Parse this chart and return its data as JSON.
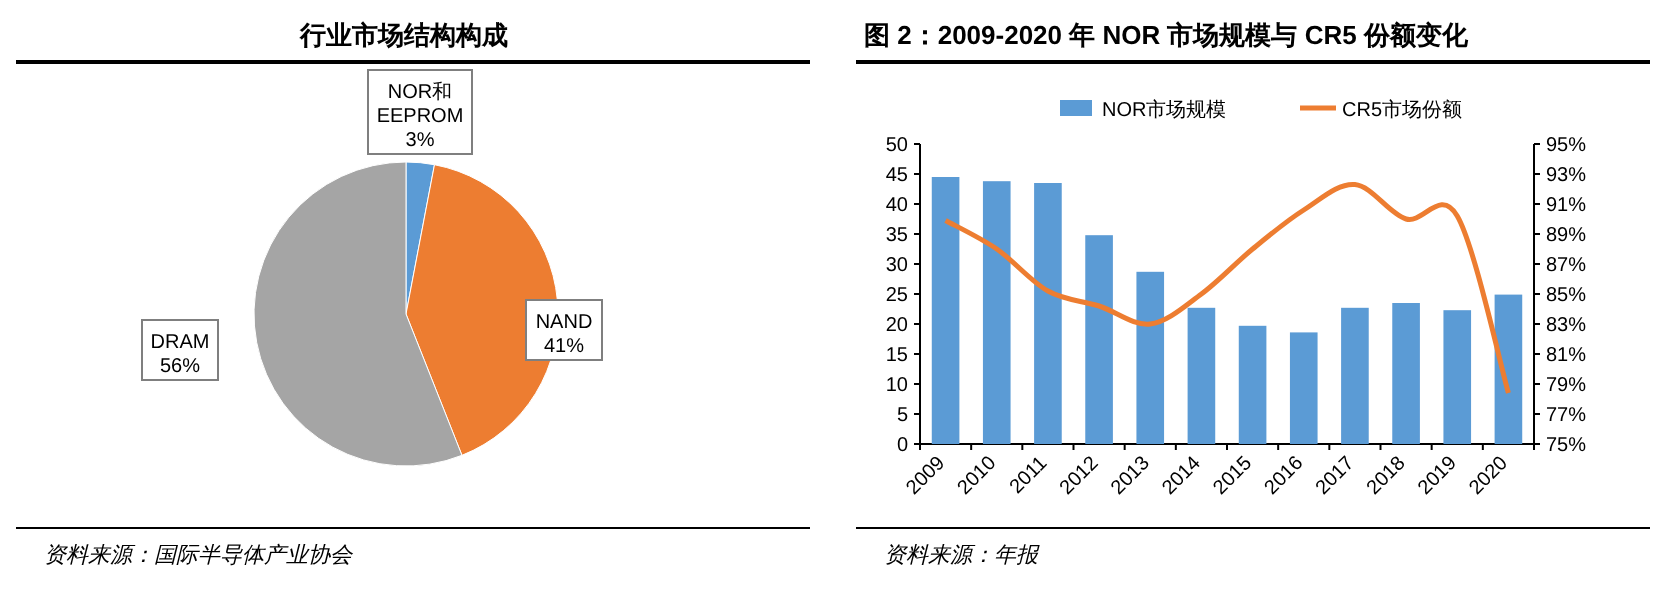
{
  "chart_data": [
    {
      "type": "pie",
      "title": "行业市场结构构成",
      "categories": [
        "NOR和\nEEPROM",
        "NAND",
        "DRAM"
      ],
      "values": [
        3,
        41,
        56
      ],
      "colors": [
        "#5b9bd5",
        "#ed7d31",
        "#a5a5a5"
      ],
      "value_labels": [
        "3%",
        "41%",
        "56%"
      ],
      "annotations": [
        "资料来源：国际半导体产业协会"
      ]
    },
    {
      "type": "bar",
      "title": "图 2：2009-2020 年 NOR 市场规模与 CR5 份额变化",
      "categories": [
        "2009",
        "2010",
        "2011",
        "2012",
        "2013",
        "2014",
        "2015",
        "2016",
        "2017",
        "2018",
        "2019",
        "2020"
      ],
      "series": [
        {
          "name": "NOR市场规模",
          "type": "bar",
          "color": "#5b9bd5",
          "values": [
            44.5,
            43.8,
            43.5,
            34.8,
            28.7,
            22.7,
            19.7,
            18.6,
            22.7,
            23.5,
            22.3,
            24.9
          ]
        },
        {
          "name": "CR5市场份额",
          "type": "line",
          "axis": "y2",
          "color": "#ed7d31",
          "values": [
            89.9,
            88,
            85.2,
            84.2,
            83,
            85,
            88,
            90.6,
            92.3,
            90,
            90.2,
            78.4
          ]
        }
      ],
      "ylim": [
        0,
        50
      ],
      "yticks": [
        0,
        5,
        10,
        15,
        20,
        25,
        30,
        35,
        40,
        45,
        50
      ],
      "y2lim": [
        75,
        95
      ],
      "y2ticks": [
        {
          "value": 75,
          "label": "75%"
        },
        {
          "value": 77,
          "label": "77%"
        },
        {
          "value": 79,
          "label": "79%"
        },
        {
          "value": 81,
          "label": "81%"
        },
        {
          "value": 83,
          "label": "83%"
        },
        {
          "value": 85,
          "label": "85%"
        },
        {
          "value": 87,
          "label": "87%"
        },
        {
          "value": 89,
          "label": "89%"
        },
        {
          "value": 91,
          "label": "91%"
        },
        {
          "value": 93,
          "label": "93%"
        },
        {
          "value": 95,
          "label": "95%"
        }
      ],
      "legend": "top",
      "grid": false,
      "annotations": [
        "资料来源：年报"
      ]
    }
  ]
}
